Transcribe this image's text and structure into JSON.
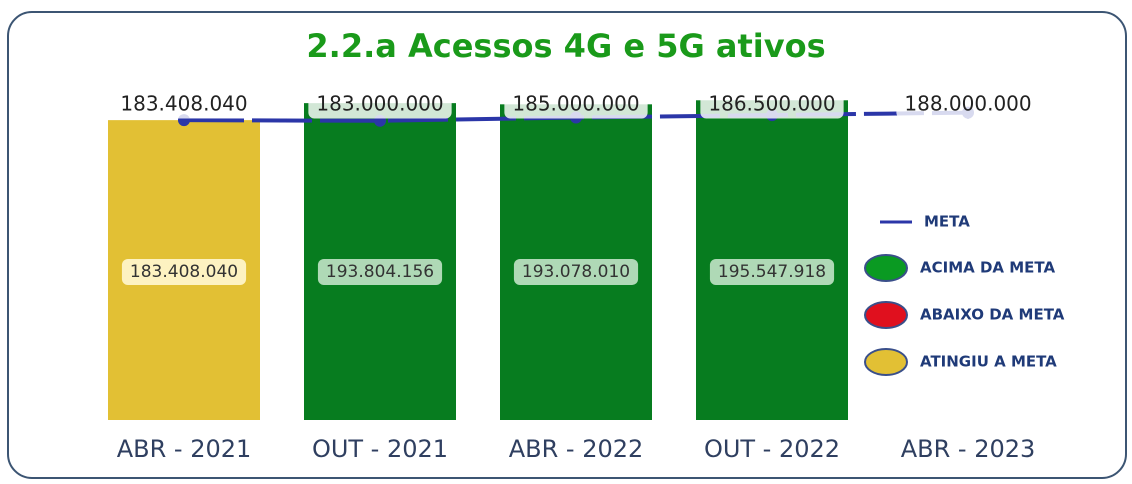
{
  "chart_data": {
    "type": "bar",
    "title": "2.2.a Acessos 4G e 5G ativos",
    "categories": [
      "ABR - 2021",
      "OUT - 2021",
      "ABR - 2022",
      "OUT - 2022",
      "ABR - 2023"
    ],
    "ylim": [
      0,
      200000000
    ],
    "bars": {
      "values": [
        183408040,
        193804156,
        193078010,
        195547918,
        null
      ],
      "value_labels": [
        "183.408.040",
        "193.804.156",
        "193.078.010",
        "195.547.918",
        null
      ],
      "colors": [
        "#e2c034",
        "#077c1f",
        "#077c1f",
        "#077c1f",
        null
      ]
    },
    "meta": {
      "name": "META",
      "color": "#2b36a8",
      "values": [
        183408040,
        183000000,
        185000000,
        186500000,
        188000000
      ],
      "value_labels": [
        "183.408.040",
        "183.000.000",
        "185.000.000",
        "186.500.000",
        "188.000.000"
      ]
    },
    "legend": [
      {
        "name": "ACIMA DA META",
        "color": "#0a9a22"
      },
      {
        "name": "ABAIXO DA META",
        "color": "#e0101e"
      },
      {
        "name": "ATINGIU A META",
        "color": "#e2c034"
      }
    ]
  }
}
